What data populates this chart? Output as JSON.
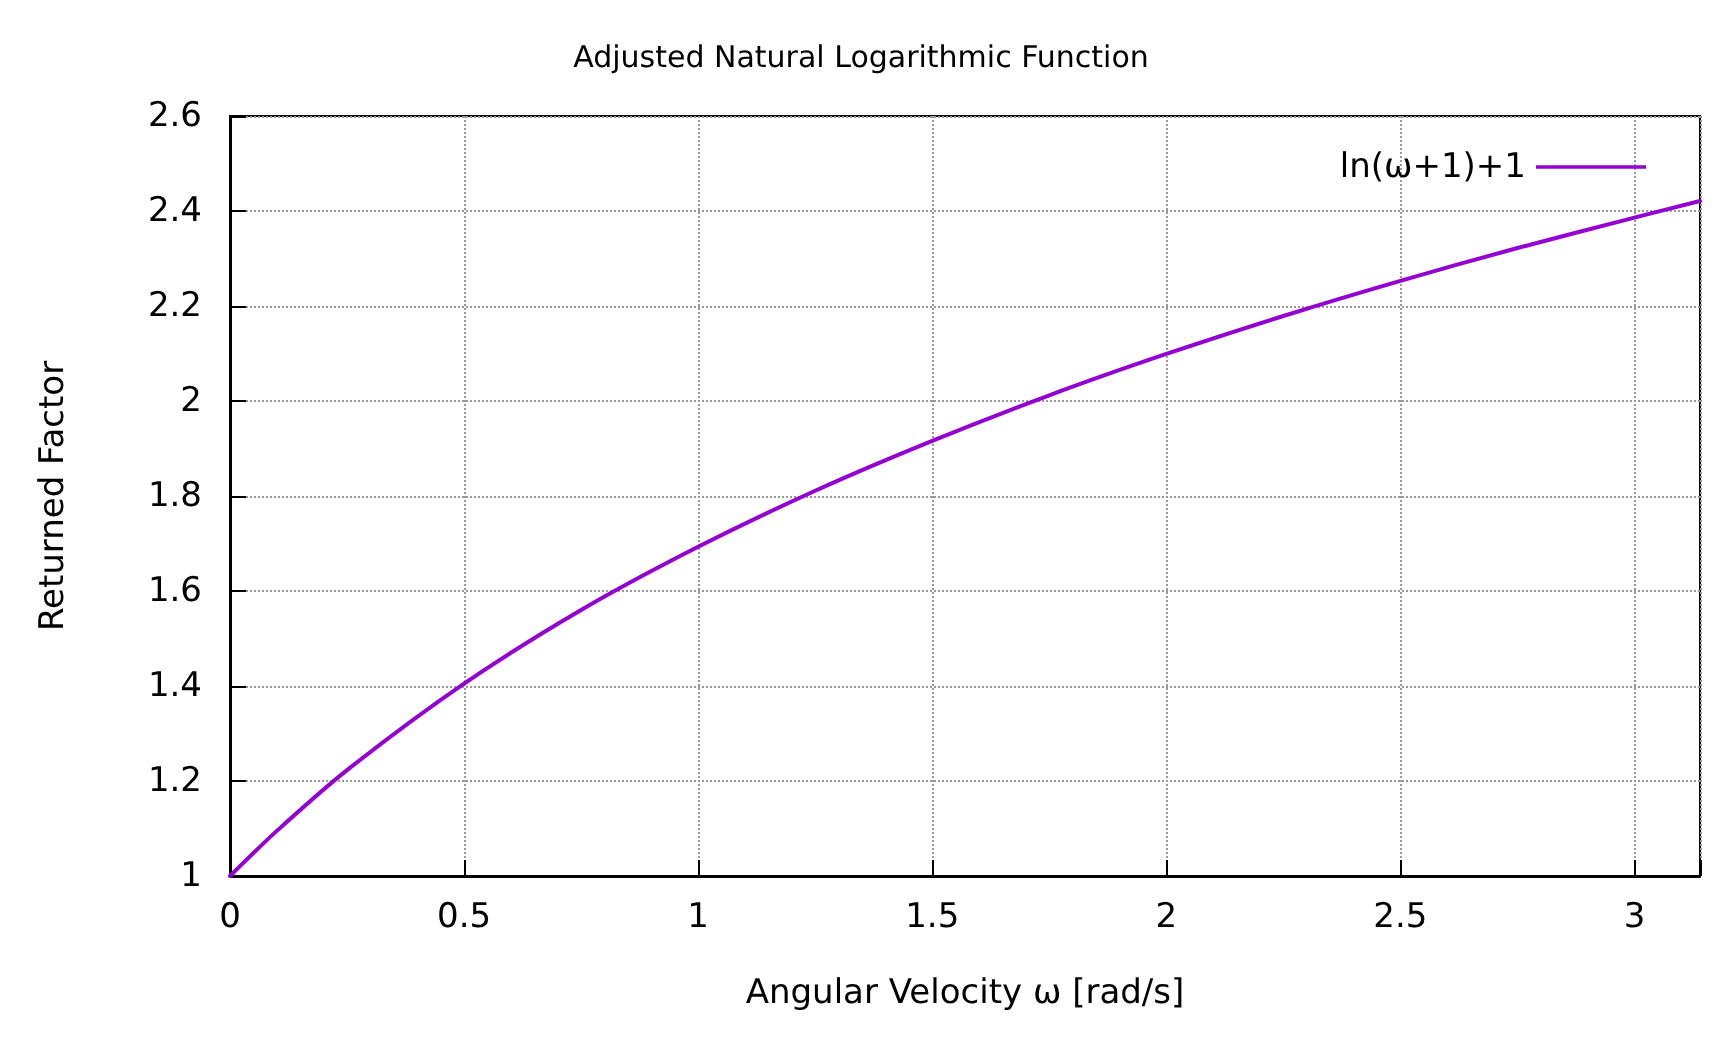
{
  "chart_data": {
    "type": "line",
    "title": "Adjusted Natural Logarithmic Function",
    "xlabel": "Angular Velocity ω [rad/s]",
    "ylabel": "Returned Factor",
    "x": [
      0,
      0.1,
      0.25,
      0.5,
      0.75,
      1,
      1.25,
      1.5,
      1.75,
      2,
      2.25,
      2.5,
      2.75,
      3,
      3.14
    ],
    "series": [
      {
        "name": "ln(ω+1)+1",
        "color": "#9400d3",
        "values": [
          1,
          1.095,
          1.223,
          1.405,
          1.56,
          1.693,
          1.811,
          1.916,
          2.012,
          2.099,
          2.179,
          2.253,
          2.322,
          2.386,
          2.421
        ]
      }
    ],
    "xlim": [
      0,
      3.14
    ],
    "ylim": [
      1,
      2.6
    ],
    "xticks": [
      0,
      0.5,
      1,
      1.5,
      2,
      2.5,
      3
    ],
    "yticks": [
      1,
      1.2,
      1.4,
      1.6,
      1.8,
      2,
      2.2,
      2.4,
      2.6
    ],
    "grid": true,
    "legend": "top right",
    "marker": "none",
    "line_style": "solid"
  }
}
